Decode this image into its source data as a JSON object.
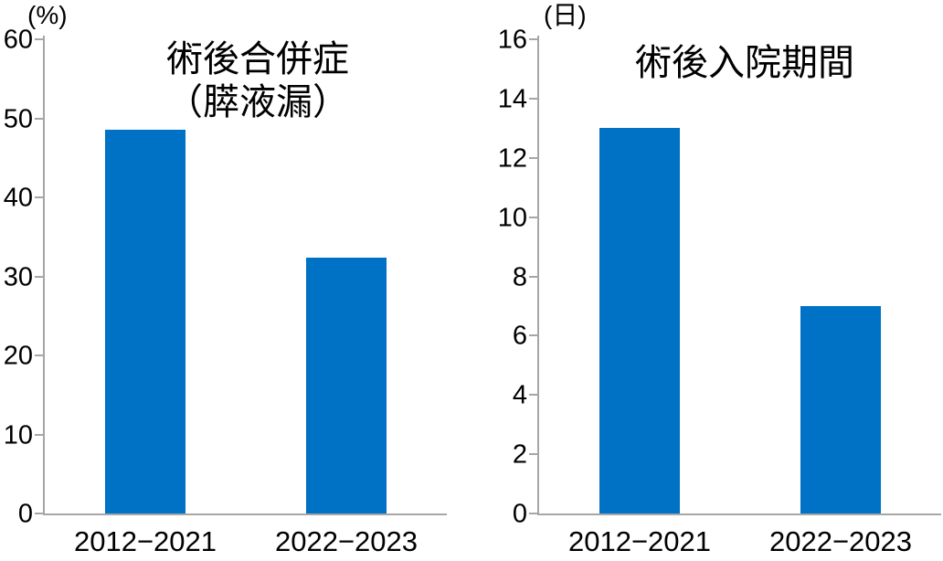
{
  "page": {
    "background_color": "#ffffff",
    "text_color": "#000000",
    "axis_color": "#a6a6a6"
  },
  "chart_data": [
    {
      "type": "bar",
      "title": "術後合併症（膵液漏）",
      "title_lines": [
        "術後合併症",
        "（膵液漏）"
      ],
      "unit": "(%)",
      "categories": [
        "2012−2021",
        "2022−2023"
      ],
      "values": [
        48.5,
        32.4
      ],
      "ylim": [
        0,
        60
      ],
      "y_tick_step": 10,
      "y_tick_labels": [
        "0",
        "10",
        "20",
        "30",
        "40",
        "50",
        "60"
      ],
      "bar_color": "#0072c6",
      "grid": false,
      "legend": false
    },
    {
      "type": "bar",
      "title": "術後入院期間",
      "title_lines": [
        "術後入院期間"
      ],
      "unit": "(日)",
      "categories": [
        "2012−2021",
        "2022−2023"
      ],
      "values": [
        13,
        7
      ],
      "ylim": [
        0,
        16
      ],
      "y_tick_step": 2,
      "y_tick_labels": [
        "0",
        "2",
        "4",
        "6",
        "8",
        "10",
        "12",
        "14",
        "16"
      ],
      "bar_color": "#0072c6",
      "grid": false,
      "legend": false
    }
  ]
}
